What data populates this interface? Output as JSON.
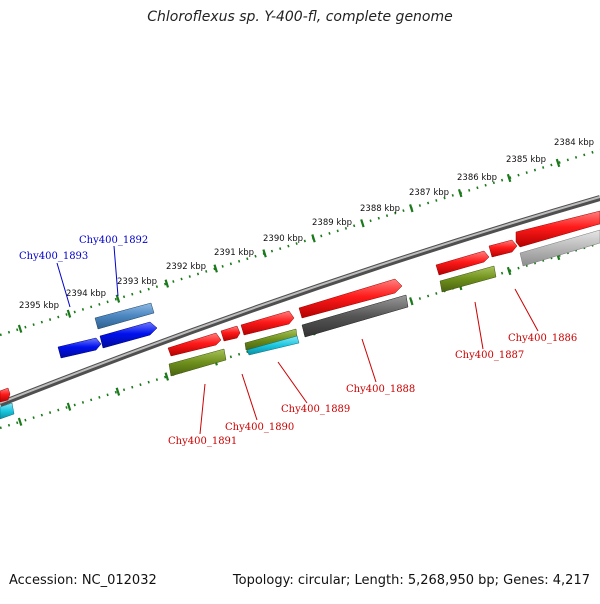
{
  "header": {
    "title": "Chloroflexus sp. Y-400-fl, complete genome"
  },
  "footer": {
    "accession": "Accession: NC_012032",
    "summary": "Topology: circular; Length: 5,268,950 bp; Genes: 4,217"
  },
  "colors": {
    "forward_gene": "#ff1a1a",
    "other_gene": "#0011ee",
    "steel_gene": "#4b86c0",
    "olive_gene": "#6e8f1c",
    "cyan_gene": "#19c6e0",
    "dark_gray_gene": "#555555",
    "light_gray_gene": "#b8b8b8",
    "backbone": "#777777",
    "tick_dots": "#1a7a1a",
    "label_red": "#cc0000",
    "label_blue": "#0000cc"
  },
  "scale": {
    "unit": "kbp",
    "ticks": [
      "2384 kbp",
      "2385 kbp",
      "2386 kbp",
      "2387 kbp",
      "2388 kbp",
      "2389 kbp",
      "2390 kbp",
      "2391 kbp",
      "2392 kbp",
      "2393 kbp",
      "2394 kbp",
      "2395 kbp"
    ]
  },
  "genes": [
    {
      "id": "Chy400_1886",
      "color": "red"
    },
    {
      "id": "Chy400_1887",
      "color": "red"
    },
    {
      "id": "Chy400_1888",
      "color": "red"
    },
    {
      "id": "Chy400_1889",
      "color": "red"
    },
    {
      "id": "Chy400_1890",
      "color": "red"
    },
    {
      "id": "Chy400_1891",
      "color": "red"
    },
    {
      "id": "Chy400_1892",
      "color": "blue"
    },
    {
      "id": "Chy400_1893",
      "color": "blue"
    }
  ]
}
